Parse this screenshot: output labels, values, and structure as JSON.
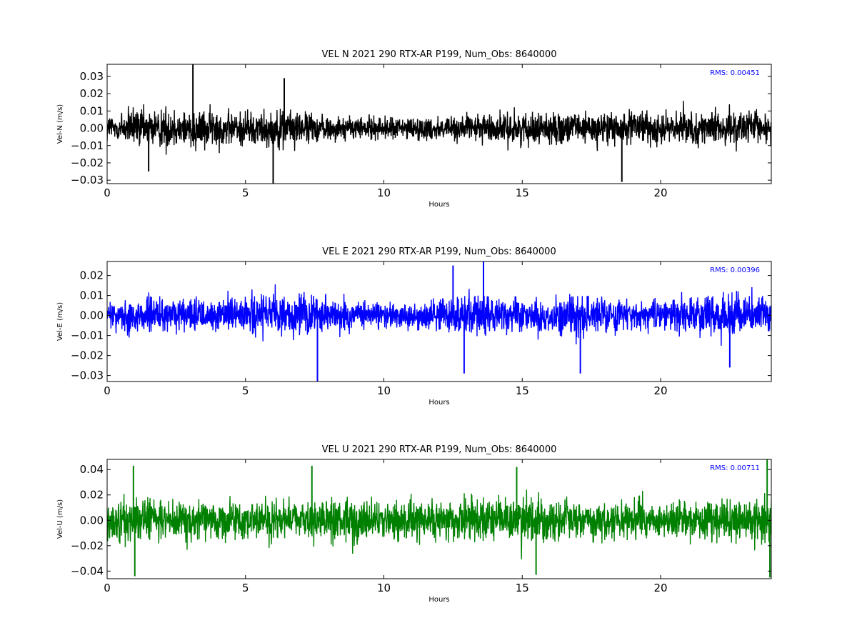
{
  "chart_data": [
    {
      "type": "line",
      "title": "VEL N 2021 290 RTX-AR  P199, Num_Obs: 8640000",
      "xlabel": "Hours",
      "ylabel": "Vel-N (m/s)",
      "xlim": [
        0,
        24
      ],
      "ylim": [
        -0.032,
        0.037
      ],
      "x_ticks": [
        "0",
        "5",
        "10",
        "15",
        "20"
      ],
      "y_ticks": [
        "−0.03",
        "−0.02",
        "−0.01",
        "0.00",
        "0.01",
        "0.02",
        "0.03"
      ],
      "annotation": "RMS:  0.00451",
      "color": "#000000",
      "annotation_color": "#0000ff",
      "series": [
        {
          "rms": 0.00451,
          "envelope": {
            "hours": [
              0,
              1,
              2,
              3,
              4,
              5,
              6,
              7,
              8,
              9,
              10,
              11,
              12,
              13,
              14,
              15,
              16,
              17,
              18,
              19,
              20,
              21,
              22,
              23,
              24
            ],
            "upper": [
              0.013,
              0.018,
              0.017,
              0.018,
              0.016,
              0.014,
              0.017,
              0.014,
              0.011,
              0.01,
              0.01,
              0.01,
              0.01,
              0.01,
              0.013,
              0.013,
              0.013,
              0.013,
              0.015,
              0.014,
              0.014,
              0.013,
              0.013,
              0.014,
              0.015
            ],
            "lower": [
              -0.013,
              -0.018,
              -0.017,
              -0.018,
              -0.016,
              -0.014,
              -0.017,
              -0.014,
              -0.011,
              -0.01,
              -0.01,
              -0.01,
              -0.01,
              -0.01,
              -0.013,
              -0.013,
              -0.013,
              -0.013,
              -0.015,
              -0.014,
              -0.014,
              -0.013,
              -0.013,
              -0.014,
              -0.015
            ]
          },
          "spikes": [
            {
              "hour": 3.1,
              "value": 0.037
            },
            {
              "hour": 6.0,
              "value": -0.032
            },
            {
              "hour": 18.6,
              "value": -0.031
            },
            {
              "hour": 6.4,
              "value": 0.029
            },
            {
              "hour": 1.5,
              "value": -0.025
            }
          ]
        }
      ]
    },
    {
      "type": "line",
      "title": "VEL E 2021 290 RTX-AR  P199, Num_Obs: 8640000",
      "xlabel": "Hours",
      "ylabel": "Vel-E (m/s)",
      "xlim": [
        0,
        24
      ],
      "ylim": [
        -0.033,
        0.027
      ],
      "x_ticks": [
        "0",
        "5",
        "10",
        "15",
        "20"
      ],
      "y_ticks": [
        "−0.03",
        "−0.02",
        "−0.01",
        "0.00",
        "0.01",
        "0.02"
      ],
      "annotation": "RMS:  0.00396",
      "color": "#0000ff",
      "annotation_color": "#0000ff",
      "series": [
        {
          "rms": 0.00396,
          "envelope": {
            "hours": [
              0,
              1,
              2,
              3,
              4,
              5,
              6,
              7,
              8,
              9,
              10,
              11,
              12,
              13,
              14,
              15,
              16,
              17,
              18,
              19,
              20,
              21,
              22,
              23,
              24
            ],
            "upper": [
              0.01,
              0.015,
              0.013,
              0.011,
              0.012,
              0.014,
              0.015,
              0.014,
              0.011,
              0.01,
              0.01,
              0.01,
              0.012,
              0.017,
              0.014,
              0.011,
              0.012,
              0.015,
              0.012,
              0.011,
              0.011,
              0.013,
              0.015,
              0.014,
              0.012
            ],
            "lower": [
              -0.01,
              -0.015,
              -0.013,
              -0.011,
              -0.012,
              -0.014,
              -0.015,
              -0.014,
              -0.011,
              -0.01,
              -0.01,
              -0.01,
              -0.012,
              -0.017,
              -0.014,
              -0.011,
              -0.012,
              -0.016,
              -0.012,
              -0.011,
              -0.011,
              -0.013,
              -0.015,
              -0.014,
              -0.012
            ]
          },
          "spikes": [
            {
              "hour": 7.6,
              "value": -0.033
            },
            {
              "hour": 13.6,
              "value": 0.027
            },
            {
              "hour": 12.5,
              "value": 0.025
            },
            {
              "hour": 12.9,
              "value": -0.029
            },
            {
              "hour": 17.1,
              "value": -0.029
            },
            {
              "hour": 22.5,
              "value": -0.026
            }
          ]
        }
      ]
    },
    {
      "type": "line",
      "title": "VEL U 2021 290 RTX-AR  P199, Num_Obs: 8640000",
      "xlabel": "Hours",
      "ylabel": "Vel-U (m/s)",
      "xlim": [
        0,
        24
      ],
      "ylim": [
        -0.046,
        0.048
      ],
      "x_ticks": [
        "0",
        "5",
        "10",
        "15",
        "20"
      ],
      "y_ticks": [
        "−0.04",
        "−0.02",
        "0.00",
        "0.02",
        "0.04"
      ],
      "annotation": "RMS:  0.00711",
      "color": "#008000",
      "annotation_color": "#0000ff",
      "series": [
        {
          "rms": 0.00711,
          "envelope": {
            "hours": [
              0,
              1,
              2,
              3,
              4,
              5,
              6,
              7,
              8,
              9,
              10,
              11,
              12,
              13,
              14,
              15,
              16,
              17,
              18,
              19,
              20,
              21,
              22,
              23,
              24
            ],
            "upper": [
              0.022,
              0.028,
              0.024,
              0.022,
              0.02,
              0.02,
              0.022,
              0.02,
              0.026,
              0.024,
              0.022,
              0.022,
              0.022,
              0.026,
              0.028,
              0.028,
              0.026,
              0.026,
              0.024,
              0.022,
              0.02,
              0.022,
              0.024,
              0.024,
              0.034
            ],
            "lower": [
              -0.022,
              -0.028,
              -0.024,
              -0.022,
              -0.02,
              -0.02,
              -0.022,
              -0.02,
              -0.026,
              -0.024,
              -0.022,
              -0.022,
              -0.022,
              -0.026,
              -0.028,
              -0.028,
              -0.026,
              -0.026,
              -0.024,
              -0.022,
              -0.02,
              -0.022,
              -0.024,
              -0.024,
              -0.034
            ]
          },
          "spikes": [
            {
              "hour": 0.95,
              "value": 0.043
            },
            {
              "hour": 1.0,
              "value": -0.044
            },
            {
              "hour": 7.4,
              "value": 0.043
            },
            {
              "hour": 14.8,
              "value": 0.042
            },
            {
              "hour": 15.5,
              "value": -0.043
            },
            {
              "hour": 23.85,
              "value": 0.048
            },
            {
              "hour": 23.95,
              "value": -0.045
            }
          ]
        }
      ]
    }
  ]
}
